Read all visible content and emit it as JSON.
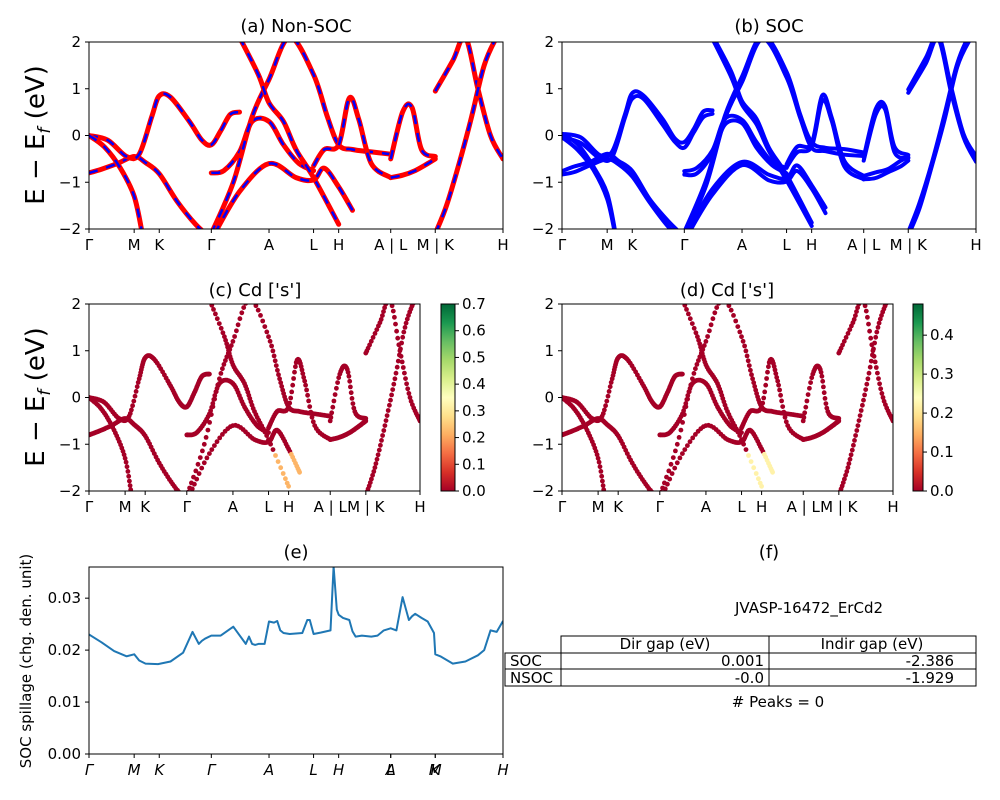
{
  "colors": {
    "nonsoc_band": "#ff0000",
    "nonsoc_dash": "#0000ff",
    "soc_band": "#0000ff",
    "spillage_line": "#1f77b4",
    "cmap": [
      "#a50026",
      "#d73027",
      "#f46d43",
      "#fdae61",
      "#fee08b",
      "#ffffbf",
      "#d9ef8b",
      "#a6d96a",
      "#66bd63",
      "#1a9850",
      "#006837"
    ]
  },
  "chart_data": [
    {
      "id": "a",
      "type": "line",
      "title": "(a) Non-SOC",
      "ylabel": "E − E_f (eV)",
      "ylim": [
        -2,
        2
      ],
      "yticks": [
        -2,
        -1,
        0,
        1,
        2
      ],
      "xlim": [
        0,
        6.6
      ],
      "kpath_labels": [
        "Γ",
        "M",
        "K",
        "Γ",
        "A",
        "L",
        "H",
        "A | L",
        "M | K",
        "H"
      ],
      "kpath_positions": [
        0,
        0.72,
        1.12,
        1.95,
        2.87,
        3.58,
        3.98,
        4.81,
        5.52,
        6.6
      ],
      "series": [
        {
          "name": "b1",
          "x": [
            0,
            0.2,
            0.45,
            0.72,
            0.9,
            1.12,
            1.4,
            1.7,
            1.95
          ],
          "y": [
            -0.8,
            -0.72,
            -0.6,
            -0.45,
            -0.58,
            -0.82,
            -1.4,
            -1.9,
            -2.2
          ]
        },
        {
          "name": "b2",
          "x": [
            0,
            0.3,
            0.6,
            0.8,
            1.0,
            1.12,
            1.3,
            1.6,
            1.8,
            1.95,
            2.1,
            2.25,
            2.4
          ],
          "y": [
            0.0,
            -0.1,
            -0.45,
            -0.4,
            0.4,
            0.85,
            0.82,
            0.3,
            -0.1,
            -0.2,
            0.1,
            0.45,
            0.5
          ]
        },
        {
          "name": "b3",
          "x": [
            0,
            0.25,
            0.5,
            0.72,
            0.85
          ],
          "y": [
            0.0,
            -0.25,
            -0.7,
            -1.3,
            -2.1
          ]
        },
        {
          "name": "b4",
          "x": [
            1.95,
            2.15,
            2.4,
            2.6,
            2.87,
            3.1,
            3.35,
            3.58
          ],
          "y": [
            -0.8,
            -0.75,
            -0.35,
            0.3,
            0.3,
            -0.2,
            -0.6,
            -0.75
          ]
        },
        {
          "name": "b5",
          "x": [
            1.95,
            2.3,
            2.6,
            2.87,
            3.2,
            3.58,
            3.8,
            3.98,
            4.2,
            4.5,
            4.81
          ],
          "y": [
            -2.1,
            -1.0,
            0.4,
            1.2,
            2.1,
            1.3,
            0.4,
            -0.2,
            -0.3,
            -0.35,
            -0.4
          ]
        },
        {
          "name": "b6",
          "x": [
            2.4,
            2.7,
            2.87,
            3.1,
            3.3,
            3.58,
            3.98
          ],
          "y": [
            2.1,
            1.3,
            0.7,
            0.3,
            -0.3,
            -0.9,
            -1.9
          ]
        },
        {
          "name": "b7",
          "x": [
            2.0,
            2.4,
            2.87,
            3.3,
            3.58,
            3.75,
            3.98,
            4.2
          ],
          "y": [
            -2.1,
            -1.2,
            -0.6,
            -0.9,
            -0.95,
            -0.7,
            -1.1,
            -1.6
          ]
        },
        {
          "name": "b8",
          "x": [
            3.58,
            3.75,
            3.98,
            4.15,
            4.3,
            4.5,
            4.81
          ],
          "y": [
            -0.65,
            -0.3,
            -0.2,
            0.8,
            0.35,
            -0.6,
            -0.9
          ]
        },
        {
          "name": "b9",
          "x": [
            4.81,
            5.0,
            5.2,
            5.4,
            5.52
          ],
          "y": [
            -0.9,
            -0.85,
            -0.75,
            -0.6,
            -0.5
          ]
        },
        {
          "name": "b10",
          "x": [
            4.81,
            5.0,
            5.15,
            5.3,
            5.52
          ],
          "y": [
            -0.5,
            0.5,
            0.6,
            -0.3,
            -0.45
          ]
        },
        {
          "name": "b11",
          "x": [
            5.52,
            5.8,
            6.0,
            6.2,
            6.4,
            6.6
          ],
          "y": [
            0.95,
            1.6,
            2.1,
            1.0,
            0.0,
            -0.5
          ]
        },
        {
          "name": "b12",
          "x": [
            5.52,
            5.7,
            5.9,
            6.1,
            6.3,
            6.5,
            6.6
          ],
          "y": [
            -2.1,
            -1.5,
            -0.6,
            0.4,
            1.5,
            2.1,
            2.2
          ]
        }
      ]
    },
    {
      "id": "b",
      "type": "line",
      "title": "(b) SOC",
      "ylim": [
        -2,
        2
      ],
      "yticks": [
        -2,
        -1,
        0,
        1,
        2
      ],
      "xlim": [
        0,
        6.6
      ],
      "kpath_labels": [
        "Γ",
        "M",
        "K",
        "Γ",
        "A",
        "L",
        "H",
        "A | L",
        "M | K",
        "H"
      ],
      "kpath_positions": [
        0,
        0.72,
        1.12,
        1.95,
        2.87,
        3.58,
        3.98,
        4.81,
        5.52,
        6.6
      ],
      "split": 0.12
    },
    {
      "id": "c",
      "type": "scatter",
      "title": "(c)  Cd ['s']",
      "ylabel": "E − E_f (eV)",
      "ylim": [
        -2,
        2
      ],
      "yticks": [
        -2,
        -1,
        0,
        1,
        2
      ],
      "colorbar_range": [
        0.0,
        0.7
      ],
      "colorbar_ticks": [
        "0.0",
        "0.1",
        "0.2",
        "0.3",
        "0.4",
        "0.5",
        "0.6",
        "0.7"
      ],
      "kpath_labels": [
        "Γ",
        "M",
        "K",
        "Γ",
        "A",
        "L",
        "H",
        "A | L",
        "M | K",
        "H"
      ],
      "kpath_positions": [
        0,
        0.72,
        1.12,
        1.95,
        2.87,
        3.58,
        3.98,
        4.81,
        5.52,
        6.6
      ]
    },
    {
      "id": "d",
      "type": "scatter",
      "title": "(d) Cd ['s']",
      "ylim": [
        -2,
        2
      ],
      "yticks": [
        -2,
        -1,
        0,
        1,
        2
      ],
      "colorbar_range": [
        0.0,
        0.48
      ],
      "colorbar_ticks": [
        "0.0",
        "0.1",
        "0.2",
        "0.3",
        "0.4"
      ],
      "kpath_labels": [
        "Γ",
        "M",
        "K",
        "Γ",
        "A",
        "L",
        "H",
        "A | L",
        "M | K",
        "H"
      ],
      "kpath_positions": [
        0,
        0.72,
        1.12,
        1.95,
        2.87,
        3.58,
        3.98,
        4.81,
        5.52,
        6.6
      ]
    },
    {
      "id": "e",
      "type": "line",
      "title": "(e)",
      "ylabel": "SOC spillage (chg. den. unit)",
      "ylim": [
        0,
        0.036
      ],
      "yticks": [
        0.0,
        0.01,
        0.02,
        0.03
      ],
      "ytick_labels": [
        "0.00",
        "0.01",
        "0.02",
        "0.03"
      ],
      "xlim": [
        0,
        6.6
      ],
      "kpath_labels": [
        "Γ",
        "M",
        "K",
        "Γ",
        "A",
        "L",
        "H",
        "A",
        "L",
        "M",
        "K",
        "H"
      ],
      "kpath_positions": [
        0,
        0.72,
        1.12,
        1.95,
        2.87,
        3.58,
        3.98,
        4.81,
        4.81,
        5.52,
        5.52,
        6.6
      ],
      "x": [
        0,
        0.2,
        0.4,
        0.6,
        0.72,
        0.8,
        0.9,
        1.1,
        1.3,
        1.5,
        1.65,
        1.75,
        1.8,
        1.85,
        1.95,
        2.1,
        2.3,
        2.5,
        2.55,
        2.6,
        2.65,
        2.7,
        2.8,
        2.87,
        2.95,
        3.0,
        3.05,
        3.1,
        3.2,
        3.3,
        3.4,
        3.48,
        3.52,
        3.58,
        3.7,
        3.85,
        3.9,
        3.95,
        3.98,
        4.05,
        4.15,
        4.2,
        4.25,
        4.35,
        4.5,
        4.6,
        4.7,
        4.81,
        4.9,
        5.0,
        5.1,
        5.15,
        5.2,
        5.3,
        5.4,
        5.5,
        5.52,
        5.6,
        5.8,
        6.0,
        6.2,
        6.3,
        6.4,
        6.5,
        6.6
      ],
      "y": [
        0.023,
        0.0215,
        0.0198,
        0.0188,
        0.0192,
        0.018,
        0.0174,
        0.0173,
        0.0178,
        0.0195,
        0.0235,
        0.0212,
        0.0218,
        0.0222,
        0.0228,
        0.0228,
        0.0245,
        0.0212,
        0.0226,
        0.0212,
        0.021,
        0.0212,
        0.0212,
        0.0255,
        0.0253,
        0.0256,
        0.0238,
        0.0233,
        0.0231,
        0.0232,
        0.0233,
        0.0258,
        0.0258,
        0.0231,
        0.0234,
        0.0238,
        0.0361,
        0.0278,
        0.0268,
        0.0262,
        0.0258,
        0.0236,
        0.0226,
        0.0228,
        0.0226,
        0.0228,
        0.0238,
        0.0242,
        0.0238,
        0.0302,
        0.0258,
        0.0265,
        0.027,
        0.0262,
        0.0255,
        0.0233,
        0.0192,
        0.0188,
        0.0174,
        0.0178,
        0.019,
        0.02,
        0.0238,
        0.0235,
        0.0256
      ]
    }
  ],
  "panel_f": {
    "title": "(f)",
    "material": "JVASP-16472_ErCd2",
    "table": {
      "headers": [
        "Dir gap (eV)",
        "Indir gap (eV)"
      ],
      "rows": [
        {
          "label": "SOC",
          "dir": "0.001",
          "indir": "-2.386"
        },
        {
          "label": "NSOC",
          "dir": "-0.0",
          "indir": "-1.929"
        }
      ]
    },
    "peaks": "# Peaks = 0"
  }
}
